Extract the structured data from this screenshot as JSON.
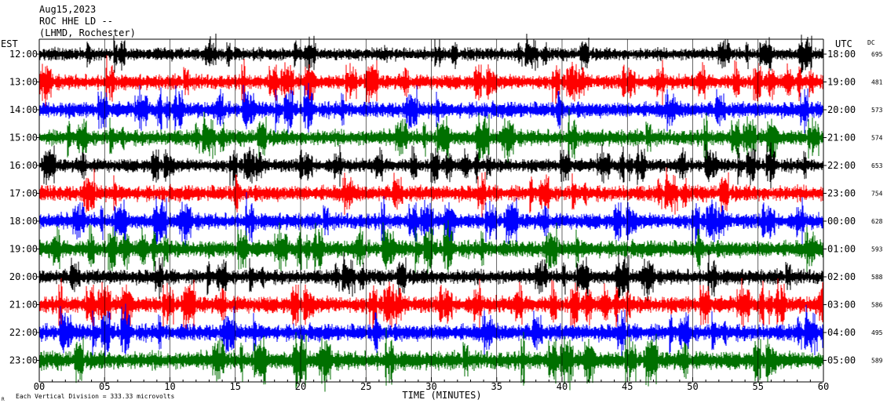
{
  "header": {
    "date": "Aug15,2023",
    "channel": "ROC HHE LD --",
    "location": "(LHMD, Rochester)"
  },
  "left_axis_label": "EST",
  "right_axis_label": "UTC",
  "dc_label": "DC",
  "footer": {
    "scale_note": "Each Vertical Division = 333.33 microvolts",
    "mark": "R"
  },
  "colors": {
    "black": "#000000",
    "red": "#ff0000",
    "blue": "#0000ff",
    "green": "#007000"
  },
  "chart_data": {
    "type": "line",
    "xlabel": "TIME (MINUTES)",
    "xlim": [
      0,
      60
    ],
    "x_ticks": [
      "00",
      "05",
      "10",
      "15",
      "20",
      "25",
      "30",
      "35",
      "40",
      "45",
      "50",
      "55",
      "60"
    ],
    "traces": [
      {
        "est": "12:00",
        "utc": "18:00",
        "dc": "695",
        "color": "black",
        "amplitude": 0.55
      },
      {
        "est": "13:00",
        "utc": "19:00",
        "dc": "481",
        "color": "red",
        "amplitude": 0.65
      },
      {
        "est": "14:00",
        "utc": "20:00",
        "dc": "573",
        "color": "blue",
        "amplitude": 0.7
      },
      {
        "est": "15:00",
        "utc": "21:00",
        "dc": "574",
        "color": "green",
        "amplitude": 0.7
      },
      {
        "est": "16:00",
        "utc": "22:00",
        "dc": "653",
        "color": "black",
        "amplitude": 0.6
      },
      {
        "est": "17:00",
        "utc": "23:00",
        "dc": "754",
        "color": "red",
        "amplitude": 0.7
      },
      {
        "est": "18:00",
        "utc": "00:00",
        "dc": "628",
        "color": "blue",
        "amplitude": 0.7
      },
      {
        "est": "19:00",
        "utc": "01:00",
        "dc": "593",
        "color": "green",
        "amplitude": 0.75
      },
      {
        "est": "20:00",
        "utc": "02:00",
        "dc": "588",
        "color": "black",
        "amplitude": 0.65
      },
      {
        "est": "21:00",
        "utc": "03:00",
        "dc": "586",
        "color": "red",
        "amplitude": 0.75
      },
      {
        "est": "22:00",
        "utc": "04:00",
        "dc": "495",
        "color": "blue",
        "amplitude": 0.75
      },
      {
        "est": "23:00",
        "utc": "05:00",
        "dc": "589",
        "color": "green",
        "amplitude": 0.8
      }
    ]
  }
}
